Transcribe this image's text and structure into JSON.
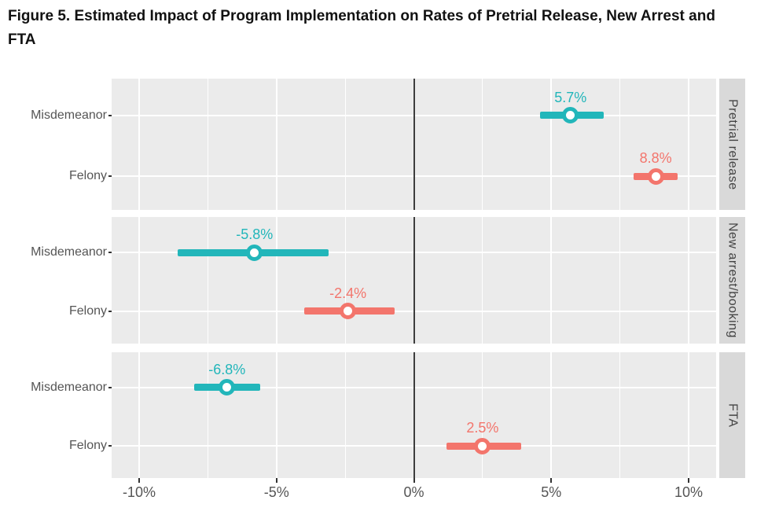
{
  "chart_data": {
    "type": "scatter",
    "variant": "faceted-dot-with-error-bars",
    "title": "Figure 5. Estimated Impact of Program Implementation on Rates of Pretrial Release, New Arrest and FTA",
    "xlabel": "",
    "ylabel": "",
    "x_axis": {
      "xlim": [
        -11,
        11
      ],
      "major_ticks": [
        {
          "value": -10,
          "label": "-10%"
        },
        {
          "value": -5,
          "label": "-5%"
        },
        {
          "value": 0,
          "label": "0%"
        },
        {
          "value": 5,
          "label": "5%"
        },
        {
          "value": 10,
          "label": "10%"
        }
      ],
      "minor_gridlines": [
        -7.5,
        -2.5,
        2.5,
        7.5
      ],
      "zero_reference_line": 0
    },
    "categories": [
      "Misdemeanor",
      "Felony"
    ],
    "series_colors": {
      "Misdemeanor": "#22b6ba",
      "Felony": "#f3756c"
    },
    "facets": [
      {
        "label": "Pretrial release",
        "points": [
          {
            "category": "Misdemeanor",
            "value": 5.7,
            "value_label": "5.7%",
            "ci": [
              4.6,
              6.9
            ]
          },
          {
            "category": "Felony",
            "value": 8.8,
            "value_label": "8.8%",
            "ci": [
              8.0,
              9.6
            ]
          }
        ]
      },
      {
        "label": "New arrest/booking",
        "points": [
          {
            "category": "Misdemeanor",
            "value": -5.8,
            "value_label": "-5.8%",
            "ci": [
              -8.6,
              -3.1
            ]
          },
          {
            "category": "Felony",
            "value": -2.4,
            "value_label": "-2.4%",
            "ci": [
              -4.0,
              -0.7
            ]
          }
        ]
      },
      {
        "label": "FTA",
        "points": [
          {
            "category": "Misdemeanor",
            "value": -6.8,
            "value_label": "-6.8%",
            "ci": [
              -8.0,
              -5.6
            ]
          },
          {
            "category": "Felony",
            "value": 2.5,
            "value_label": "2.5%",
            "ci": [
              1.2,
              3.9
            ]
          }
        ]
      }
    ],
    "style": {
      "panel_bg": "#ebebeb",
      "strip_bg": "#d9d9d9",
      "grid_color": "#ffffff",
      "axis_text_color": "#555555",
      "strip_text_color": "#444444",
      "zero_line_color": "#3d3d3d",
      "title_color": "#121212"
    },
    "grid": true,
    "legend": null
  }
}
